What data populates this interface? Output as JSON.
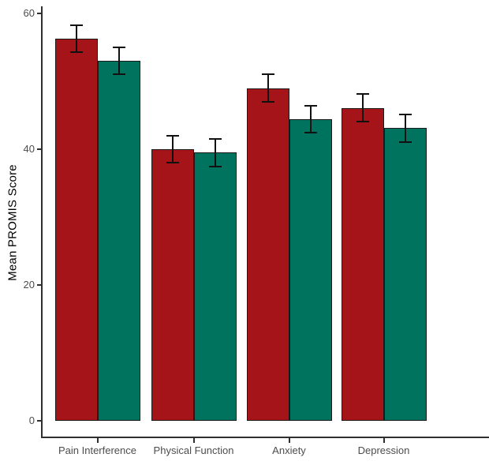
{
  "chart_data": {
    "type": "bar",
    "title": "",
    "xlabel": "",
    "ylabel": "Mean PROMIS Score",
    "categories": [
      "Pain Interference",
      "Physical Function",
      "Anxiety",
      "Depression"
    ],
    "series": [
      {
        "color": "#a51418",
        "values": [
          56.3,
          40.0,
          49.0,
          46.1
        ],
        "errors": [
          2.0,
          2.0,
          2.0,
          2.0
        ]
      },
      {
        "color": "#00735f",
        "values": [
          53.0,
          39.5,
          44.4,
          43.1
        ],
        "errors": [
          2.0,
          2.0,
          2.0,
          2.0
        ]
      }
    ],
    "y_ticks": [
      0,
      20,
      40,
      60
    ],
    "ylim": [
      0,
      62
    ],
    "grid": false,
    "legend": "none",
    "colors": {
      "bar_red": "#a51418",
      "bar_teal": "#00735f",
      "bar_outline": "#1a1a1a",
      "axis_line": "#2f2f2f",
      "tick_text": "#4d4d4d",
      "axis_title_text": "#000000",
      "background": "#ffffff"
    }
  }
}
